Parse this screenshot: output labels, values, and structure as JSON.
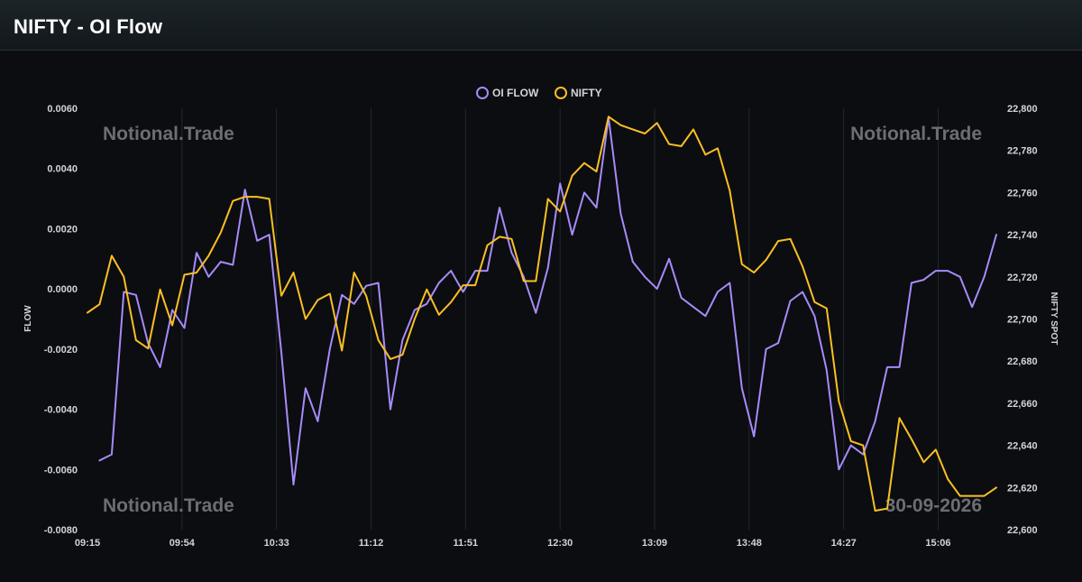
{
  "header": {
    "title": "NIFTY - OI Flow"
  },
  "watermarks": {
    "top_left": "Notional.Trade",
    "top_right": "Notional.Trade",
    "bottom_left": "Notional.Trade",
    "date": "30-09-2026"
  },
  "colors": {
    "oi_flow": "#a78bfa",
    "nifty": "#fbbf24",
    "background": "#0b0d10",
    "grid": "#23272d",
    "tick_text": "#d4d4d8",
    "watermark": "#6b6e73"
  },
  "chart_data": {
    "type": "line",
    "x_ticks": [
      "09:15",
      "09:54",
      "10:33",
      "11:12",
      "11:51",
      "12:30",
      "13:09",
      "13:48",
      "14:27",
      "15:06"
    ],
    "x_range": [
      "09:15",
      "15:30"
    ],
    "ylabel": "FLOW",
    "ylabel_right": "NIFTY SPOT",
    "ylim": [
      -0.008,
      0.006
    ],
    "ylim_right": [
      22600,
      22800
    ],
    "y_ticks": [
      "0.0060",
      "0.0040",
      "0.0020",
      "0.0000",
      "-0.0020",
      "-0.0040",
      "-0.0060",
      "-0.0080"
    ],
    "y_ticks_right": [
      "22,800",
      "22,780",
      "22,760",
      "22,740",
      "22,720",
      "22,700",
      "22,680",
      "22,660",
      "22,640",
      "22,620",
      "22,600"
    ],
    "grid": "vertical",
    "legend_position": "top-center",
    "series": [
      {
        "name": "OI FLOW",
        "axis": "left",
        "x": [
          "09:20",
          "09:25",
          "09:30",
          "09:35",
          "09:40",
          "09:45",
          "09:50",
          "09:55",
          "10:00",
          "10:05",
          "10:10",
          "10:15",
          "10:20",
          "10:25",
          "10:30",
          "10:35",
          "10:40",
          "10:45",
          "10:50",
          "10:55",
          "11:00",
          "11:05",
          "11:10",
          "11:15",
          "11:20",
          "11:25",
          "11:30",
          "11:35",
          "11:40",
          "11:45",
          "11:50",
          "11:55",
          "12:00",
          "12:05",
          "12:10",
          "12:15",
          "12:20",
          "12:25",
          "12:30",
          "12:35",
          "12:40",
          "12:45",
          "12:50",
          "12:55",
          "13:00",
          "13:05",
          "13:10",
          "13:15",
          "13:20",
          "13:25",
          "13:30",
          "13:35",
          "13:40",
          "13:45",
          "13:50",
          "13:55",
          "14:00",
          "14:05",
          "14:10",
          "14:15",
          "14:20",
          "14:25",
          "14:30",
          "14:35",
          "14:40",
          "14:45",
          "14:50",
          "14:55",
          "15:00",
          "15:05",
          "15:10",
          "15:15",
          "15:20",
          "15:25",
          "15:30"
        ],
        "values": [
          -0.0057,
          -0.0055,
          -0.0001,
          -0.0002,
          -0.0018,
          -0.0026,
          -0.0007,
          -0.0013,
          0.0012,
          0.0004,
          0.0009,
          0.0008,
          0.0033,
          0.0016,
          0.0018,
          -0.0021,
          -0.0065,
          -0.0033,
          -0.0044,
          -0.002,
          -0.0002,
          -0.0005,
          0.0001,
          0.0002,
          -0.004,
          -0.0017,
          -0.0007,
          -0.0005,
          0.0002,
          0.0006,
          -0.0001,
          0.0006,
          0.0006,
          0.0027,
          0.0012,
          0.0004,
          -0.0008,
          0.0007,
          0.0035,
          0.0018,
          0.0032,
          0.0027,
          0.0057,
          0.0025,
          0.0009,
          0.0004,
          0.0,
          0.001,
          -0.0003,
          -0.0006,
          -0.0009,
          -0.0001,
          0.0002,
          -0.0033,
          -0.0049,
          -0.002,
          -0.0018,
          -0.0004,
          -0.0001,
          -0.0009,
          -0.0027,
          -0.006,
          -0.0052,
          -0.0055,
          -0.0044,
          -0.0026,
          -0.0026,
          0.0002,
          0.0003,
          0.0006,
          0.0006,
          0.0004,
          -0.0006,
          0.0004,
          0.0018
        ]
      },
      {
        "name": "NIFTY",
        "axis": "right",
        "x": [
          "09:15",
          "09:20",
          "09:25",
          "09:30",
          "09:35",
          "09:40",
          "09:45",
          "09:50",
          "09:55",
          "10:00",
          "10:05",
          "10:10",
          "10:15",
          "10:20",
          "10:25",
          "10:30",
          "10:35",
          "10:40",
          "10:45",
          "10:50",
          "10:55",
          "11:00",
          "11:05",
          "11:10",
          "11:15",
          "11:20",
          "11:25",
          "11:30",
          "11:35",
          "11:40",
          "11:45",
          "11:50",
          "11:55",
          "12:00",
          "12:05",
          "12:10",
          "12:15",
          "12:20",
          "12:25",
          "12:30",
          "12:35",
          "12:40",
          "12:45",
          "12:50",
          "12:55",
          "13:00",
          "13:05",
          "13:10",
          "13:15",
          "13:20",
          "13:25",
          "13:30",
          "13:35",
          "13:40",
          "13:45",
          "13:50",
          "13:55",
          "14:00",
          "14:05",
          "14:10",
          "14:15",
          "14:20",
          "14:25",
          "14:30",
          "14:35",
          "14:40",
          "14:45",
          "14:50",
          "14:55",
          "15:00",
          "15:05",
          "15:10",
          "15:15",
          "15:20",
          "15:25",
          "15:30"
        ],
        "values": [
          22703,
          22707,
          22730,
          22720,
          22690,
          22686,
          22714,
          22697,
          22721,
          22722,
          22730,
          22741,
          22756,
          22758,
          22758,
          22757,
          22711,
          22722,
          22700,
          22709,
          22712,
          22685,
          22722,
          22711,
          22690,
          22681,
          22683,
          22700,
          22714,
          22702,
          22708,
          22716,
          22716,
          22735,
          22739,
          22738,
          22718,
          22718,
          22757,
          22751,
          22768,
          22774,
          22770,
          22796,
          22792,
          22790,
          22788,
          22793,
          22783,
          22782,
          22790,
          22778,
          22781,
          22761,
          22726,
          22722,
          22728,
          22737,
          22738,
          22725,
          22708,
          22705,
          22661,
          22642,
          22640,
          22609,
          22610,
          22653,
          22643,
          22632,
          22638,
          22624,
          22616,
          22616,
          22616,
          22620
        ]
      }
    ]
  }
}
